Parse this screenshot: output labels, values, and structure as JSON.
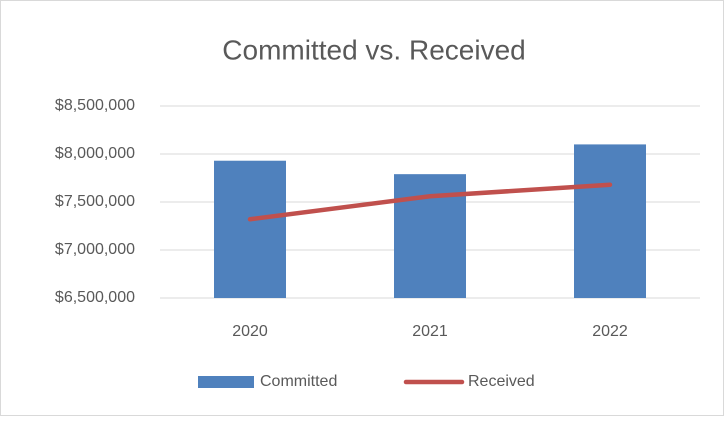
{
  "chart_data": {
    "type": "combo",
    "title": "Committed vs. Received",
    "categories": [
      "2020",
      "2021",
      "2022"
    ],
    "series": [
      {
        "name": "Committed",
        "type": "bar",
        "color": "#4f81bd",
        "values": [
          7930000,
          7790000,
          8100000
        ]
      },
      {
        "name": "Received",
        "type": "line",
        "color": "#c0504d",
        "values": [
          7320000,
          7560000,
          7680000
        ]
      }
    ],
    "ylim": [
      6500000,
      8500000
    ],
    "yticks": [
      {
        "value": 6500000,
        "label": "$6,500,000"
      },
      {
        "value": 7000000,
        "label": "$7,000,000"
      },
      {
        "value": 7500000,
        "label": "$7,500,000"
      },
      {
        "value": 8000000,
        "label": "$8,000,000"
      },
      {
        "value": 8500000,
        "label": "$8,500,000"
      }
    ],
    "grid": true,
    "legend": "bottom"
  }
}
